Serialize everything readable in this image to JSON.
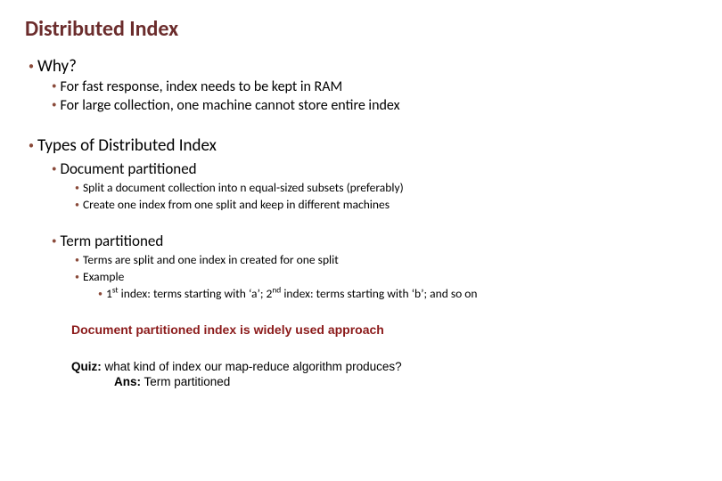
{
  "title": "Distributed Index",
  "colors": {
    "title": "#6b2c2c",
    "bullet": "#8a4a3a",
    "highlight": "#8b1a1a",
    "body_text": "#000000",
    "background": "#ffffff"
  },
  "typography": {
    "title_fontsize": 24,
    "lvl1_fontsize": 19,
    "lvl2_fontsize": 16,
    "lvl2b_fontsize": 17,
    "lvl3_fontsize": 13.5,
    "highlight_fontsize": 14,
    "quiz_fontsize": 13.5,
    "title_weight": "bold",
    "highlight_weight": "bold",
    "font_family": "Calibri, Segoe UI, Arial"
  },
  "sections": {
    "why": {
      "heading": "Why?",
      "points": [
        "For fast response, index needs to be kept in RAM",
        "For large collection, one machine cannot store entire index"
      ]
    },
    "types": {
      "heading": "Types of Distributed Index",
      "doc_part": {
        "heading": "Document partitioned",
        "points": [
          "Split a document collection into n equal-sized subsets (preferably)",
          "Create one index from one split and keep in different machines"
        ]
      },
      "term_part": {
        "heading": "Term partitioned",
        "points": [
          "Terms are split and one index in created for one split",
          "Example"
        ],
        "example_prefix": "1",
        "example_sup1": "st",
        "example_mid1": " index: terms starting with ‘a’; 2",
        "example_sup2": "nd",
        "example_mid2": " index: terms starting with ‘b’; and so on"
      }
    }
  },
  "highlight": "Document partitioned index is widely used approach",
  "quiz": {
    "label": "Quiz:",
    "text": " what kind of index our map-reduce algorithm produces?",
    "ans_label": "Ans:",
    "ans_text": " Term partitioned"
  }
}
